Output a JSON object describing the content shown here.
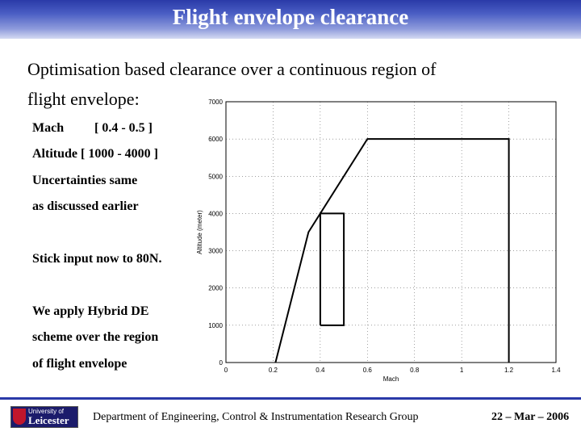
{
  "header": {
    "title": "Flight envelope clearance"
  },
  "intro": {
    "line1": "Optimisation based clearance over a continuous region of",
    "line2": "flight envelope:"
  },
  "bullets": {
    "mach_label": "Mach",
    "mach_range": "[ 0.4 - 0.5 ]",
    "altitude": "Altitude [ 1000 - 4000 ]",
    "uncertainties_1": "Uncertainties same",
    "uncertainties_2": "as discussed earlier",
    "stick": "Stick input now to 80N.",
    "apply_1": "We apply Hybrid DE",
    "apply_2": "scheme over the region",
    "apply_3": "of flight envelope"
  },
  "chart_data": {
    "type": "line",
    "xlabel": "Mach",
    "ylabel": "Altitude (meter)",
    "xlim": [
      0,
      1.4
    ],
    "ylim": [
      0,
      7000
    ],
    "grid": true,
    "x_ticks": [
      0,
      0.2,
      0.4,
      0.6,
      0.8,
      1,
      1.2,
      1.4
    ],
    "y_ticks": [
      0,
      1000,
      2000,
      3000,
      4000,
      5000,
      6000,
      7000
    ],
    "series": [
      {
        "x": [
          0.21,
          0.35,
          0.6,
          1.2,
          1.2
        ],
        "y": [
          0,
          3500,
          6000,
          6000,
          0
        ]
      },
      {
        "x": [
          0.4,
          0.5,
          0.5,
          0.4,
          0.4
        ],
        "y": [
          1000,
          1000,
          4000,
          4000,
          1000
        ]
      }
    ]
  },
  "footer": {
    "department": "Department of Engineering, Control & Instrumentation Research Group",
    "date": "22 – Mar – 2006",
    "logo_line1": "University of",
    "logo_line2": "Leicester"
  }
}
